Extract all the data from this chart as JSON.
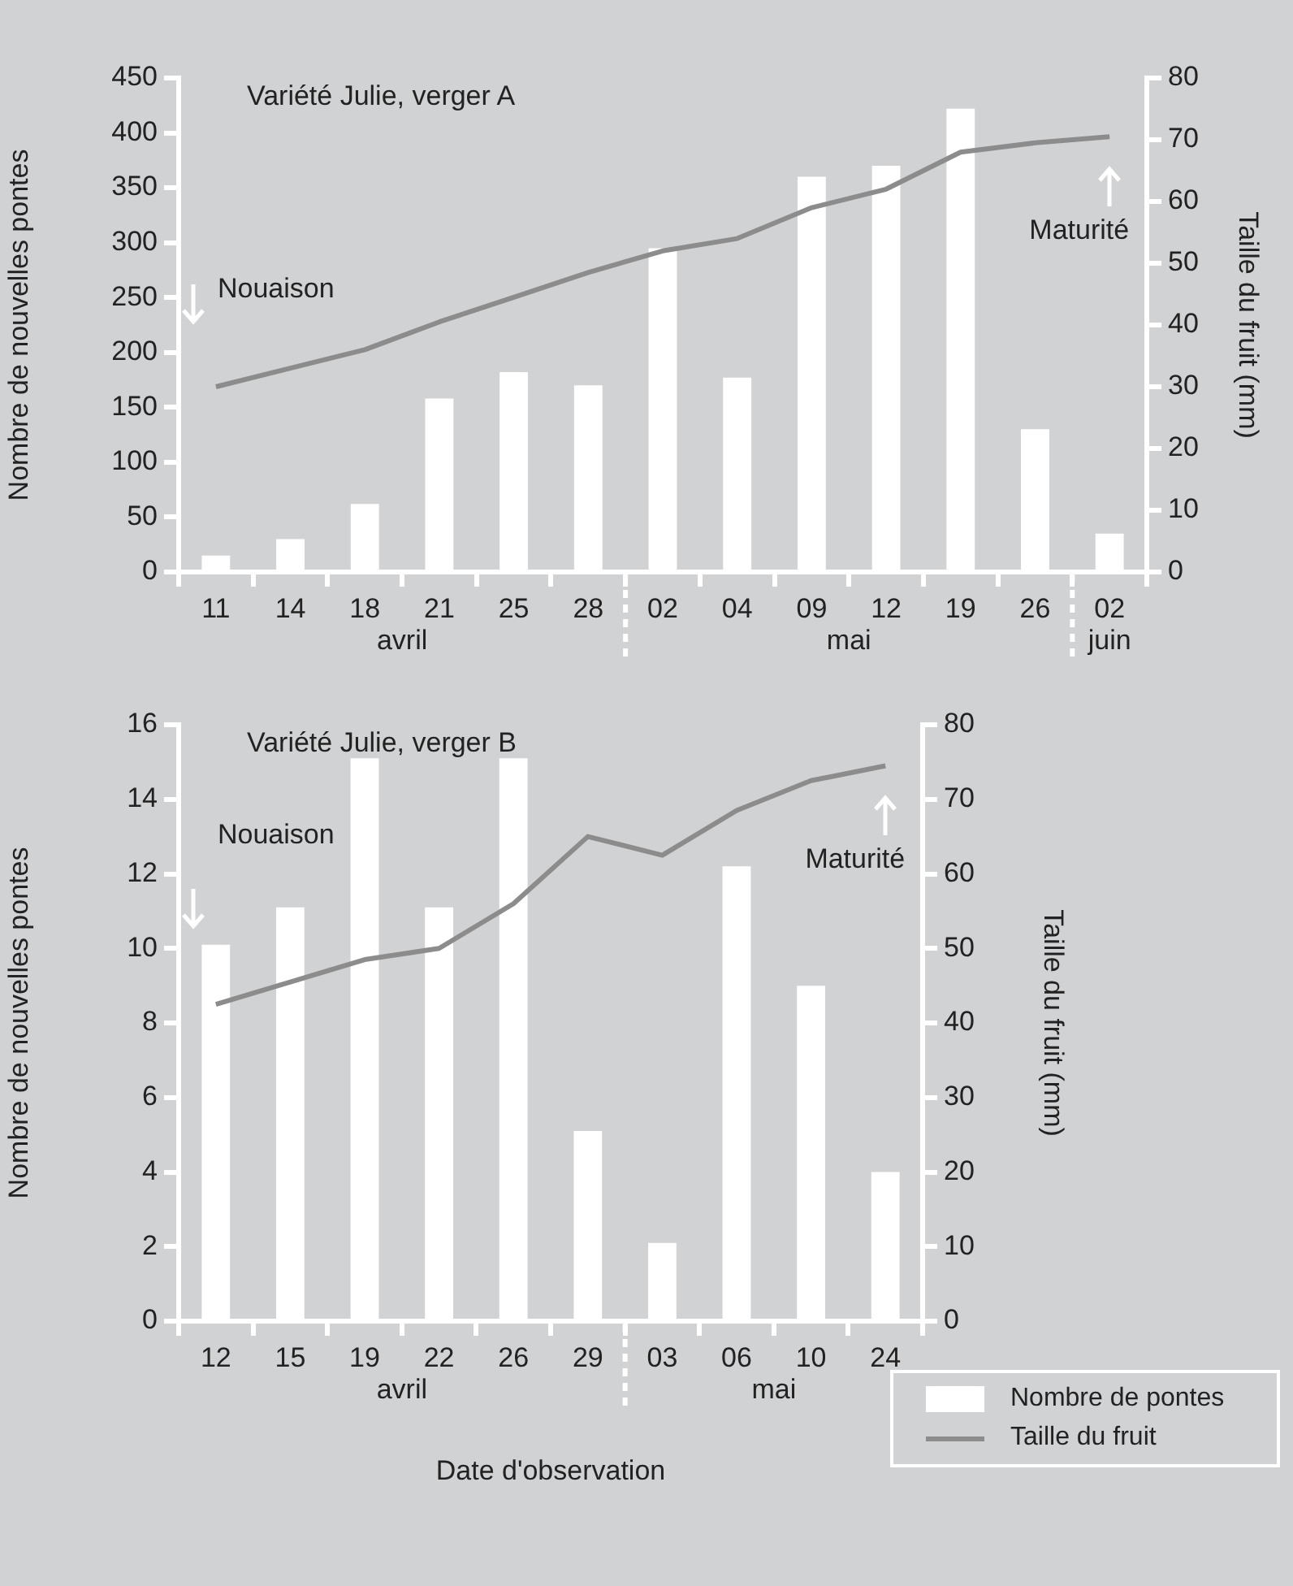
{
  "chart_data": [
    {
      "type": "bar",
      "title": "Variété Julie, verger A",
      "ylabel": "Nombre de nouvelles pontes",
      "y2label": "Taille du fruit (mm)",
      "categories": [
        "11",
        "14",
        "18",
        "21",
        "25",
        "28",
        "02",
        "04",
        "09",
        "12",
        "19",
        "26",
        "02"
      ],
      "series": [
        {
          "color": "#ffffff",
          "values": [
            15,
            30,
            62,
            158,
            182,
            170,
            295,
            177,
            360,
            370,
            422,
            130,
            35
          ]
        },
        {
          "type": "line",
          "axis": "y2",
          "color": "#8c8c8c",
          "values": [
            30,
            33,
            36,
            40.5,
            44.5,
            48.5,
            52,
            54,
            59,
            62,
            68,
            69.5,
            70.5
          ]
        }
      ],
      "ylim": [
        0,
        450
      ],
      "yticks": [
        0,
        50,
        100,
        150,
        200,
        250,
        300,
        350,
        400,
        450
      ],
      "y2lim": [
        0,
        80
      ],
      "y2ticks": [
        0,
        10,
        20,
        30,
        40,
        50,
        60,
        70,
        80
      ],
      "annotations": [
        "Nouaison",
        "Maturité",
        "avril",
        "mai",
        "juin"
      ],
      "grid": false,
      "legend": false,
      "marker": "none",
      "line_style": "solid"
    },
    {
      "type": "bar",
      "title": "Variété Julie, verger B",
      "xlabel": "Date d'observation",
      "ylabel": "Nombre de nouvelles pontes",
      "y2label": "Taille du fruit (mm)",
      "categories": [
        "12",
        "15",
        "19",
        "22",
        "26",
        "29",
        "03",
        "06",
        "10",
        "24"
      ],
      "series": [
        {
          "name": "Nombre de pontes",
          "color": "#ffffff",
          "values": [
            10.1,
            11.1,
            15.1,
            11.1,
            15.1,
            5.1,
            2.1,
            12.2,
            9,
            4
          ]
        },
        {
          "type": "line",
          "axis": "y2",
          "name": "Taille du fruit",
          "color": "#8c8c8c",
          "values": [
            42.5,
            45.5,
            48.5,
            50,
            56,
            65,
            62.5,
            68.5,
            72.5,
            74.5
          ]
        }
      ],
      "ylim": [
        0,
        16
      ],
      "yticks": [
        0,
        2,
        4,
        6,
        8,
        10,
        12,
        14,
        16
      ],
      "y2lim": [
        0,
        80
      ],
      "y2ticks": [
        0,
        10,
        20,
        30,
        40,
        50,
        60,
        70,
        80
      ],
      "annotations": [
        "Nouaison",
        "Maturité",
        "avril",
        "mai"
      ],
      "grid": false,
      "legend": "bottom right",
      "marker": "none",
      "line_style": "solid"
    }
  ]
}
